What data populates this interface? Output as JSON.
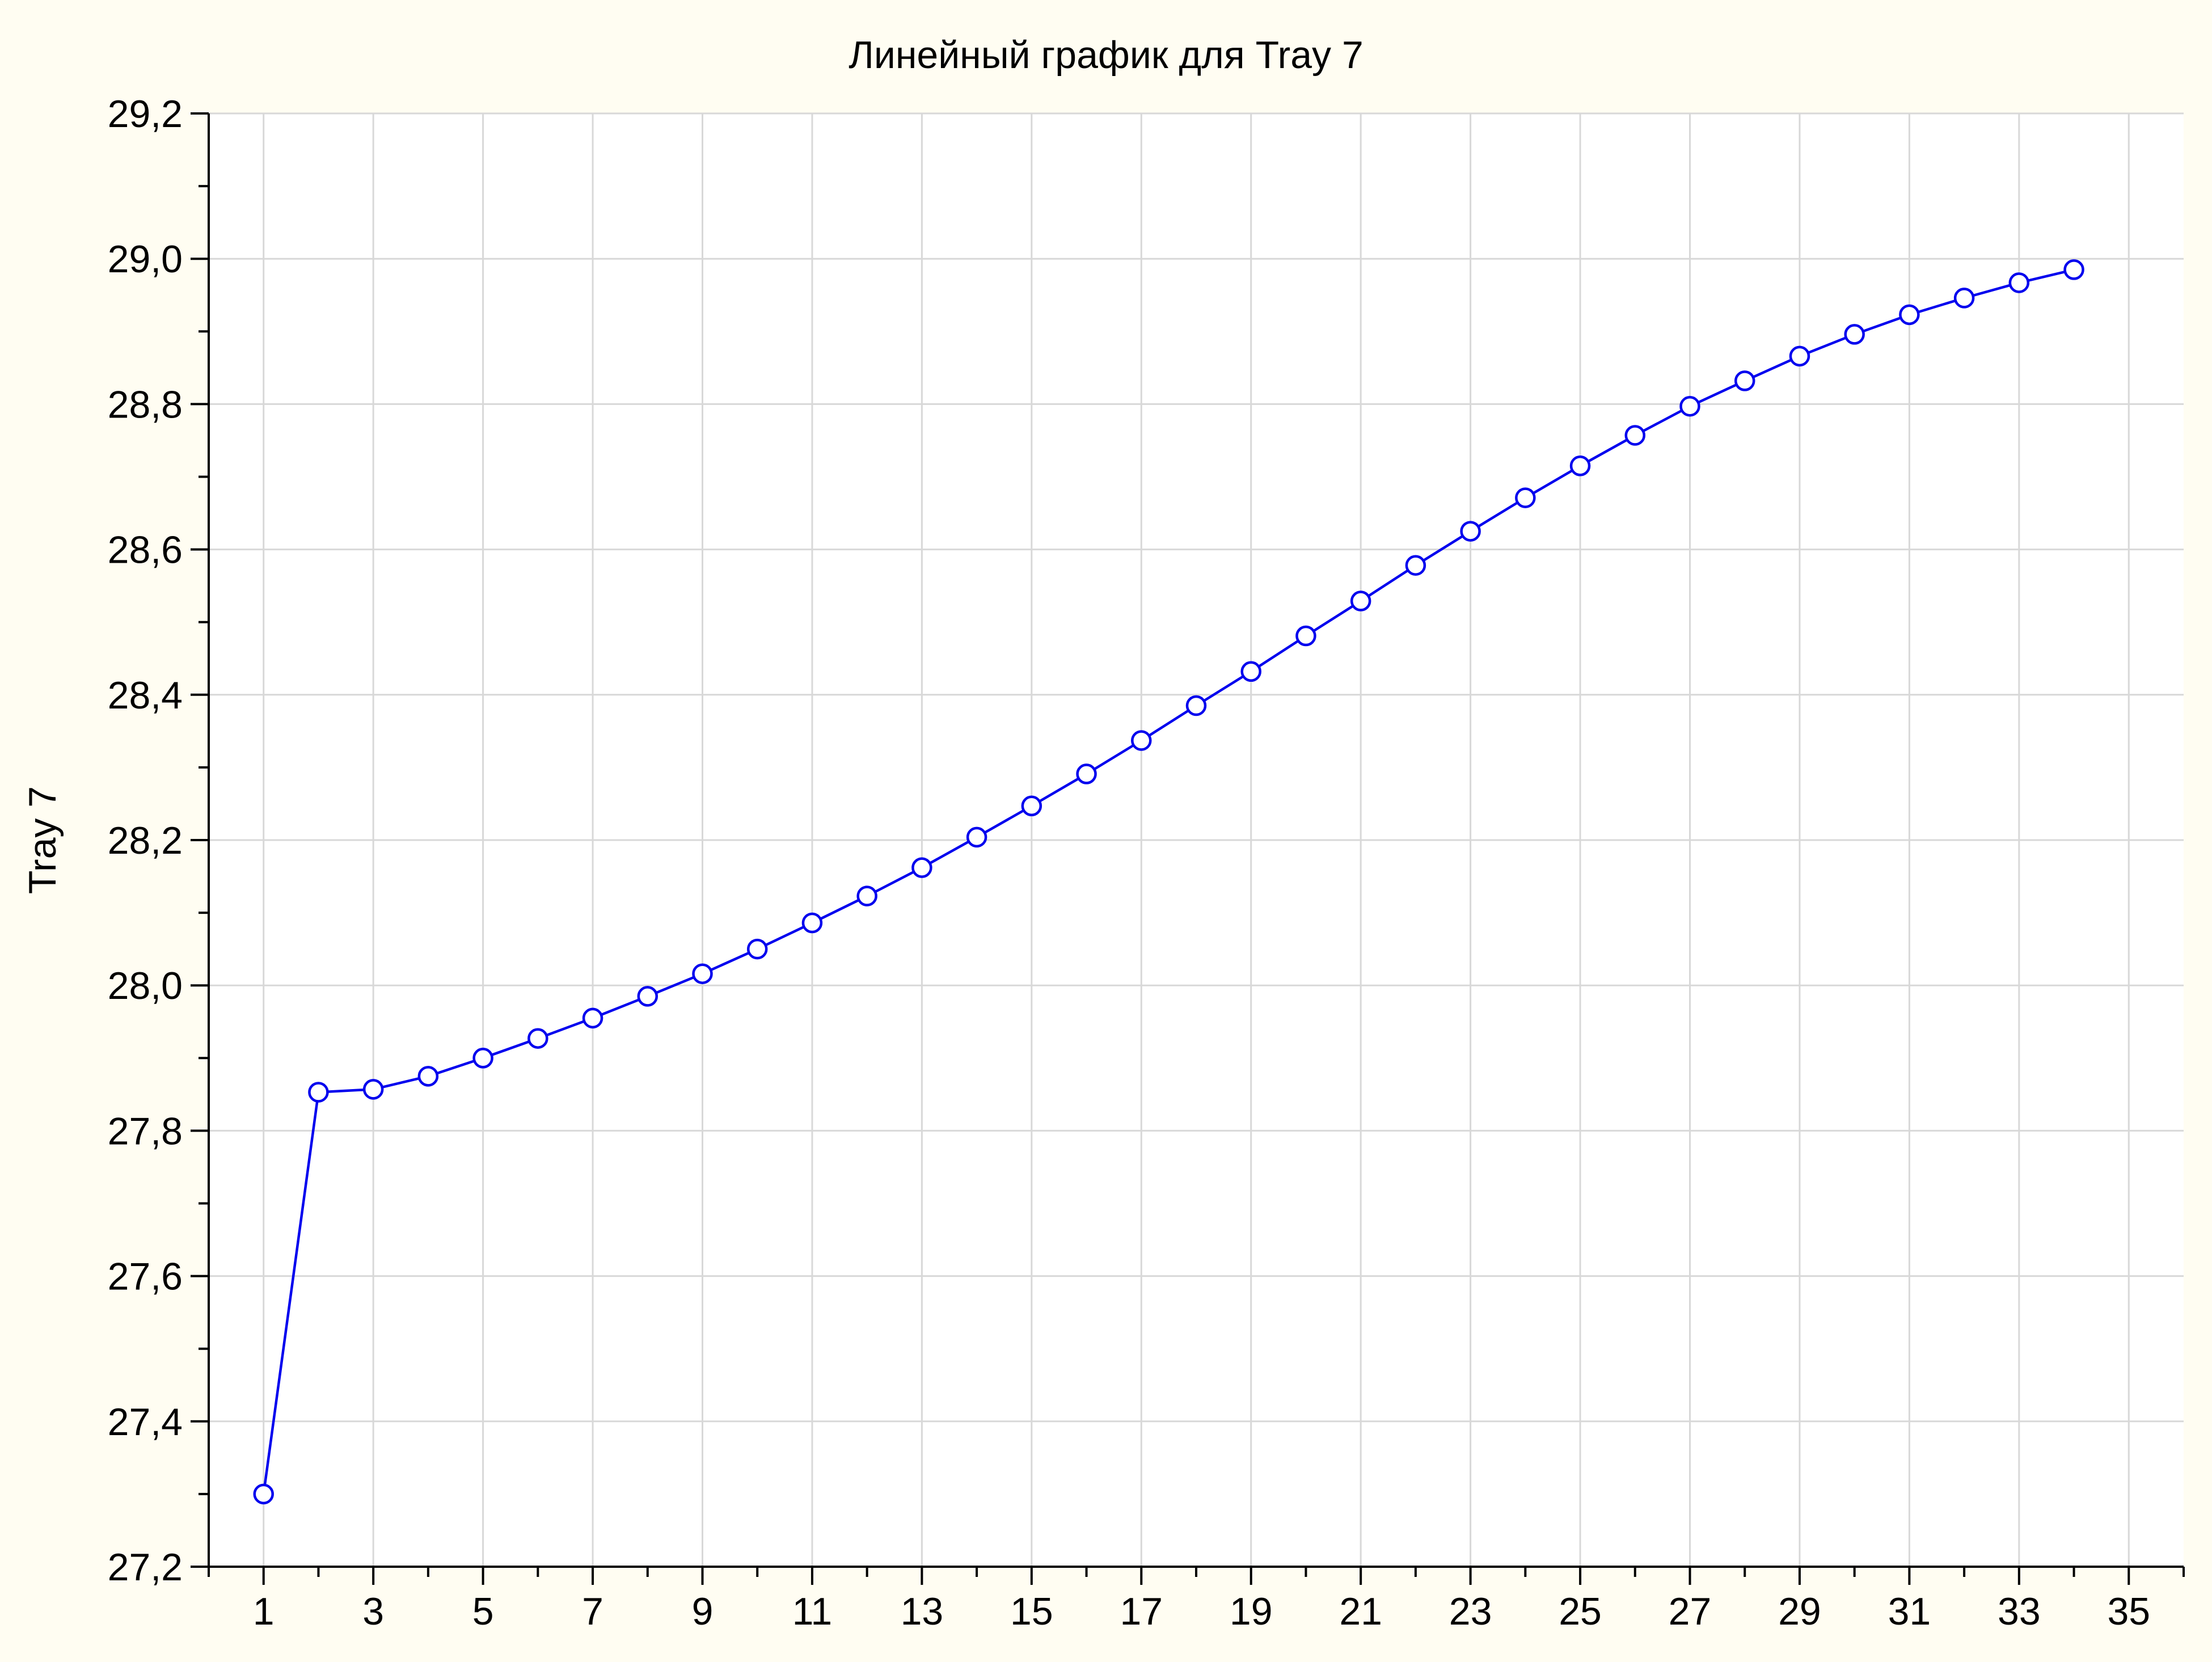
{
  "chart_data": {
    "type": "line",
    "title": "Линейный график для Tray 7",
    "xlabel": "",
    "ylabel": "Tray 7",
    "xlim": [
      0,
      36
    ],
    "ylim": [
      27.2,
      29.2
    ],
    "x_ticks": [
      1,
      3,
      5,
      7,
      9,
      11,
      13,
      15,
      17,
      19,
      21,
      23,
      25,
      27,
      29,
      31,
      33,
      35
    ],
    "y_ticks": [
      27.2,
      27.4,
      27.6,
      27.8,
      28.0,
      28.2,
      28.4,
      28.6,
      28.8,
      29.0,
      29.2
    ],
    "x_tick_labels": [
      "1",
      "3",
      "5",
      "7",
      "9",
      "11",
      "13",
      "15",
      "17",
      "19",
      "21",
      "23",
      "25",
      "27",
      "29",
      "31",
      "33",
      "35"
    ],
    "y_tick_labels": [
      "27,2",
      "27,4",
      "27,6",
      "27,8",
      "28,0",
      "28,2",
      "28,4",
      "28,6",
      "28,8",
      "29,0",
      "29,2"
    ],
    "grid": true,
    "legend": false,
    "series": [
      {
        "color": "#0000ee",
        "marker": "circle-open",
        "x": [
          1,
          2,
          3,
          4,
          5,
          6,
          7,
          8,
          9,
          10,
          11,
          12,
          13,
          14,
          15,
          16,
          17,
          18,
          19,
          20,
          21,
          22,
          23,
          24,
          25,
          26,
          27,
          28,
          29,
          30,
          31,
          32,
          33,
          34
        ],
        "values": [
          27.3,
          27.853,
          27.857,
          27.875,
          27.9,
          27.927,
          27.955,
          27.985,
          28.016,
          28.05,
          28.086,
          28.123,
          28.162,
          28.204,
          28.247,
          28.291,
          28.337,
          28.385,
          28.432,
          28.481,
          28.529,
          28.578,
          28.625,
          28.671,
          28.715,
          28.757,
          28.797,
          28.832,
          28.866,
          28.896,
          28.923,
          28.946,
          28.967,
          28.985
        ]
      }
    ]
  }
}
